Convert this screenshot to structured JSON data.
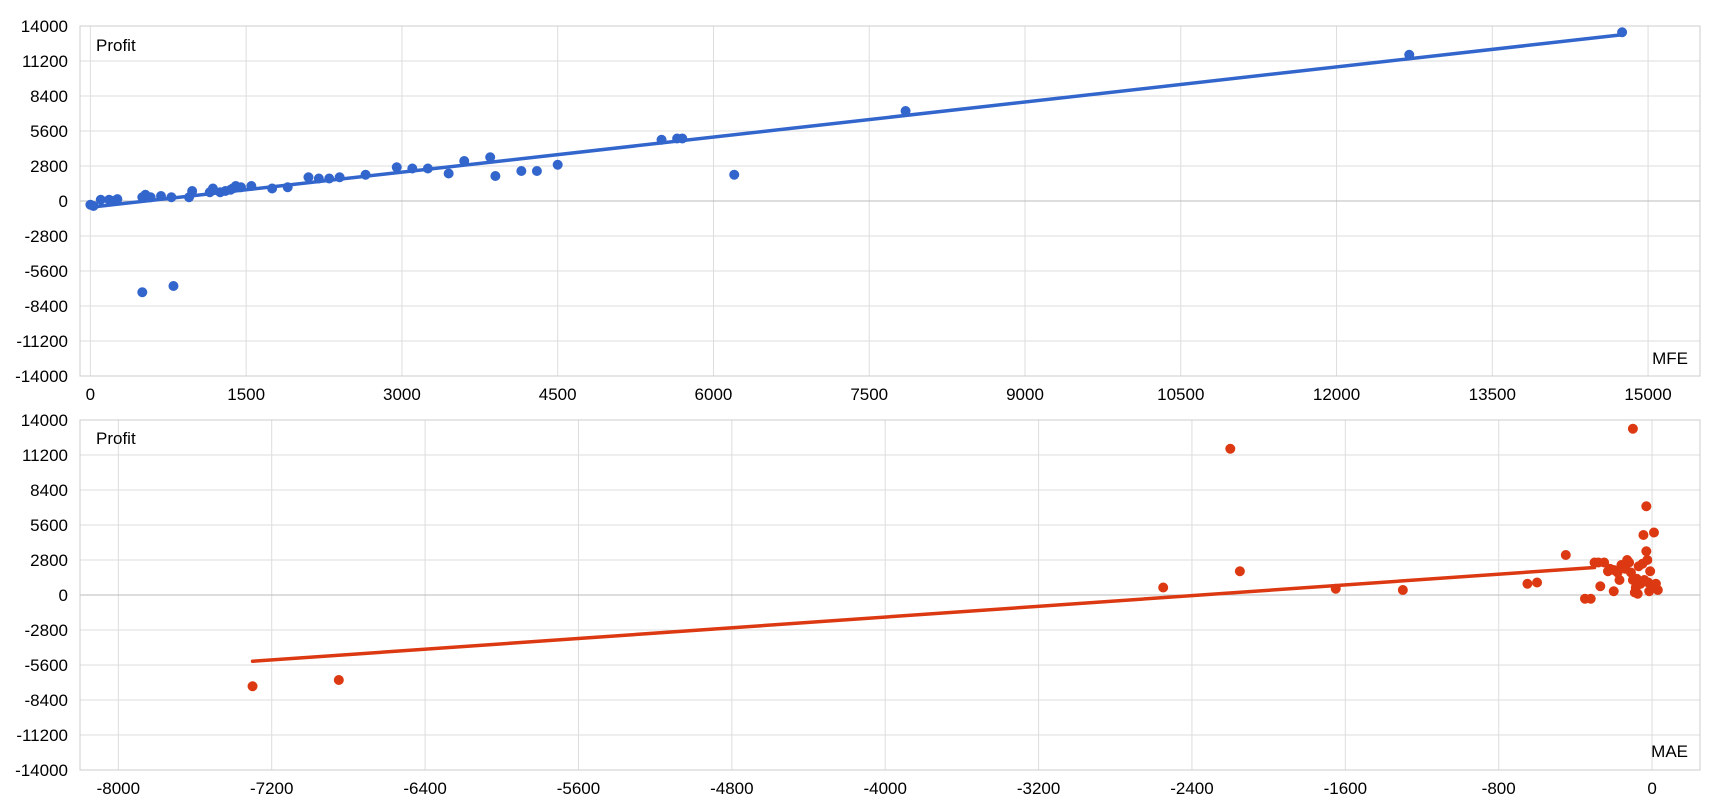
{
  "chart_data": [
    {
      "type": "scatter",
      "xlabel": "MFE",
      "ylabel": "Profit",
      "xlim": [
        -100,
        15500
      ],
      "ylim": [
        -14000,
        14000
      ],
      "x_ticks": [
        0,
        1500,
        3000,
        4500,
        6000,
        7500,
        9000,
        10500,
        12000,
        13500,
        15000
      ],
      "y_ticks": [
        14000,
        11200,
        8400,
        5600,
        2800,
        0,
        -2800,
        -5600,
        -8400,
        -11200,
        -14000
      ],
      "grid": true,
      "color": "#3366cc",
      "points": [
        [
          0,
          -300
        ],
        [
          30,
          -400
        ],
        [
          100,
          100
        ],
        [
          180,
          100
        ],
        [
          220,
          0
        ],
        [
          260,
          150
        ],
        [
          500,
          300
        ],
        [
          530,
          500
        ],
        [
          580,
          300
        ],
        [
          680,
          400
        ],
        [
          780,
          300
        ],
        [
          950,
          300
        ],
        [
          980,
          800
        ],
        [
          1150,
          700
        ],
        [
          1180,
          1000
        ],
        [
          1250,
          700
        ],
        [
          1300,
          800
        ],
        [
          1350,
          900
        ],
        [
          1370,
          1000
        ],
        [
          1400,
          1200
        ],
        [
          1450,
          1100
        ],
        [
          1550,
          1200
        ],
        [
          1750,
          1000
        ],
        [
          1900,
          1100
        ],
        [
          2100,
          1900
        ],
        [
          2200,
          1800
        ],
        [
          2300,
          1800
        ],
        [
          2400,
          1900
        ],
        [
          2650,
          2100
        ],
        [
          2950,
          2700
        ],
        [
          3100,
          2600
        ],
        [
          3250,
          2600
        ],
        [
          3450,
          2200
        ],
        [
          3600,
          3200
        ],
        [
          3850,
          3500
        ],
        [
          3900,
          2000
        ],
        [
          4150,
          2400
        ],
        [
          4300,
          2400
        ],
        [
          4500,
          2900
        ],
        [
          5500,
          4900
        ],
        [
          5650,
          5000
        ],
        [
          5700,
          5000
        ],
        [
          6200,
          2100
        ],
        [
          7850,
          7200
        ],
        [
          12700,
          11700
        ],
        [
          14750,
          13500
        ],
        [
          500,
          -7300
        ],
        [
          800,
          -6800
        ]
      ],
      "trendline": {
        "from": [
          0,
          -500
        ],
        "to": [
          14750,
          13300
        ]
      }
    },
    {
      "type": "scatter",
      "xlabel": "MAE",
      "ylabel": "Profit",
      "xlim": [
        -8200,
        250
      ],
      "ylim": [
        -14000,
        14000
      ],
      "x_ticks": [
        -8000,
        -7200,
        -6400,
        -5600,
        -4800,
        -4000,
        -3200,
        -2400,
        -1600,
        -800,
        0
      ],
      "y_ticks": [
        14000,
        11200,
        8400,
        5600,
        2800,
        0,
        -2800,
        -5600,
        -8400,
        -11200,
        -14000
      ],
      "grid": true,
      "color": "#dc3912",
      "points": [
        [
          -7300,
          -7300
        ],
        [
          -6850,
          -6800
        ],
        [
          -2550,
          600
        ],
        [
          -2200,
          11700
        ],
        [
          -2150,
          1900
        ],
        [
          -1650,
          500
        ],
        [
          -1300,
          400
        ],
        [
          -650,
          900
        ],
        [
          -600,
          1000
        ],
        [
          -450,
          3200
        ],
        [
          -350,
          -300
        ],
        [
          -320,
          -300
        ],
        [
          -300,
          2600
        ],
        [
          -280,
          2600
        ],
        [
          -270,
          700
        ],
        [
          -250,
          2600
        ],
        [
          -230,
          1900
        ],
        [
          -220,
          2100
        ],
        [
          -200,
          2000
        ],
        [
          -200,
          300
        ],
        [
          -180,
          1800
        ],
        [
          -170,
          1200
        ],
        [
          -160,
          2400
        ],
        [
          -150,
          2200
        ],
        [
          -140,
          2100
        ],
        [
          -130,
          2800
        ],
        [
          -120,
          2600
        ],
        [
          -110,
          1800
        ],
        [
          -100,
          13300
        ],
        [
          -100,
          1200
        ],
        [
          -90,
          200
        ],
        [
          -85,
          600
        ],
        [
          -80,
          1300
        ],
        [
          -75,
          100
        ],
        [
          -70,
          2300
        ],
        [
          -60,
          900
        ],
        [
          -50,
          2500
        ],
        [
          -45,
          4800
        ],
        [
          -40,
          1200
        ],
        [
          -30,
          3500
        ],
        [
          -30,
          7100
        ],
        [
          -25,
          2800
        ],
        [
          -20,
          1000
        ],
        [
          -15,
          300
        ],
        [
          -10,
          1900
        ],
        [
          0,
          600
        ],
        [
          10,
          5000
        ],
        [
          20,
          900
        ],
        [
          30,
          400
        ]
      ],
      "trendline": {
        "from": [
          -7300,
          -5300
        ],
        "to": [
          -300,
          2200
        ]
      }
    }
  ],
  "labels": {
    "top_ylabel": "Profit",
    "top_xlabel": "MFE",
    "bottom_ylabel": "Profit",
    "bottom_xlabel": "MAE"
  }
}
